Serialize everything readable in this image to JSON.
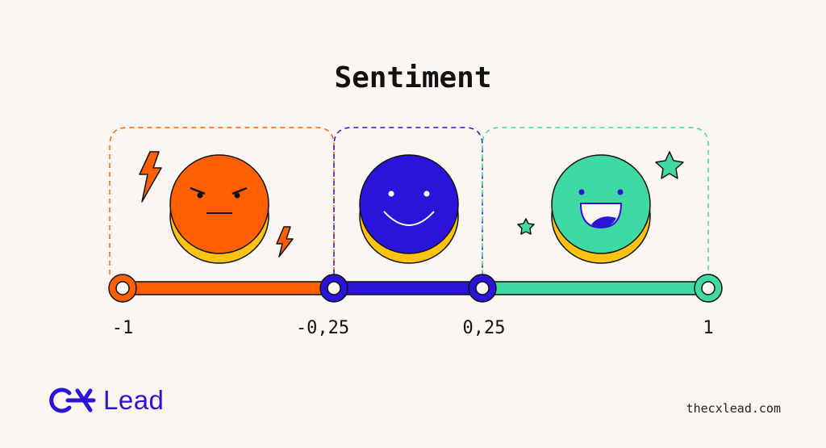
{
  "title": "Sentiment",
  "scale": {
    "ticks": [
      {
        "value": -1,
        "label": "-1"
      },
      {
        "value": -0.25,
        "label": "-0,25"
      },
      {
        "value": 0.25,
        "label": "0,25"
      },
      {
        "value": 1,
        "label": "1"
      }
    ],
    "segments": [
      {
        "from": -1,
        "to": -0.25,
        "sentiment": "negative",
        "color": "#ff5f00"
      },
      {
        "from": -0.25,
        "to": 0.25,
        "sentiment": "neutral",
        "color": "#2b14d9"
      },
      {
        "from": 0.25,
        "to": 1,
        "sentiment": "positive",
        "color": "#3fd9a4"
      }
    ]
  },
  "icons": [
    "angry-face-icon",
    "lightning-icon",
    "smiling-face-icon",
    "happy-face-icon",
    "star-icon"
  ],
  "colors": {
    "negative": "#ff5f00",
    "neutral": "#2b14d9",
    "positive": "#3fd9a4",
    "coin_shadow": "#ffc20e",
    "background": "#fbf6f1",
    "brand": "#2b14d9"
  },
  "logo": {
    "text": "Lead"
  },
  "footer": {
    "site": "thecxlead.com"
  }
}
